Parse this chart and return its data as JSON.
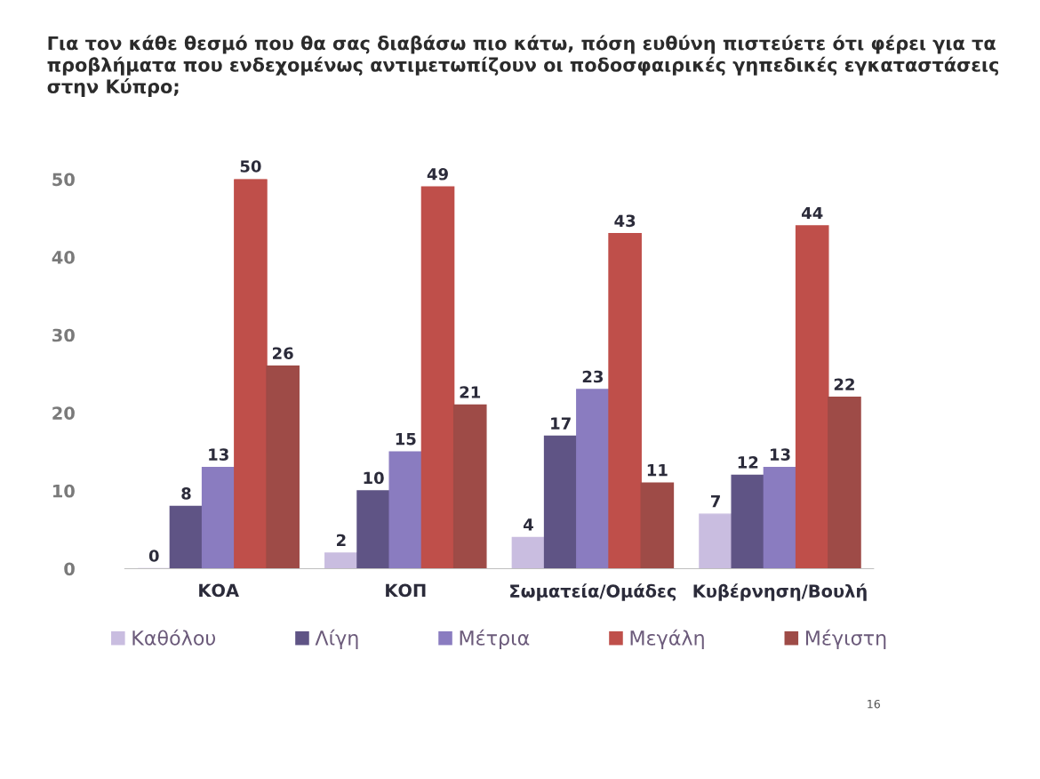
{
  "chart_data": {
    "type": "bar",
    "title": "Για τον κάθε θεσμό που θα σας διαβάσω πιο κάτω, πόση ευθύνη πιστεύετε ότι φέρει για τα προβλήματα που ενδεχομένως αντιμετωπίζουν οι ποδοσφαιρικές γηπεδικές εγκαταστάσεις στην Κύπρο;",
    "categories": [
      "ΚΟΑ",
      "ΚΟΠ",
      "Σωματεία/Ομάδες",
      "Κυβέρνηση/Βουλή"
    ],
    "series": [
      {
        "name": "Καθόλου",
        "color": "#c9bde0",
        "values": [
          0,
          2,
          4,
          7
        ]
      },
      {
        "name": "Λίγη",
        "color": "#5f5485",
        "values": [
          8,
          10,
          17,
          12
        ]
      },
      {
        "name": "Μέτρια",
        "color": "#8a7cc0",
        "values": [
          13,
          15,
          23,
          13
        ]
      },
      {
        "name": "Μεγάλη",
        "color": "#bf4f4a",
        "values": [
          50,
          49,
          43,
          44
        ]
      },
      {
        "name": "Μέγιστη",
        "color": "#9e4b47",
        "values": [
          26,
          21,
          11,
          22
        ]
      }
    ],
    "ylim": [
      0,
      50
    ],
    "yticks": [
      0,
      10,
      20,
      30,
      40,
      50
    ],
    "data_labels": true,
    "legend": "bottom",
    "annotations": [
      "16"
    ]
  }
}
